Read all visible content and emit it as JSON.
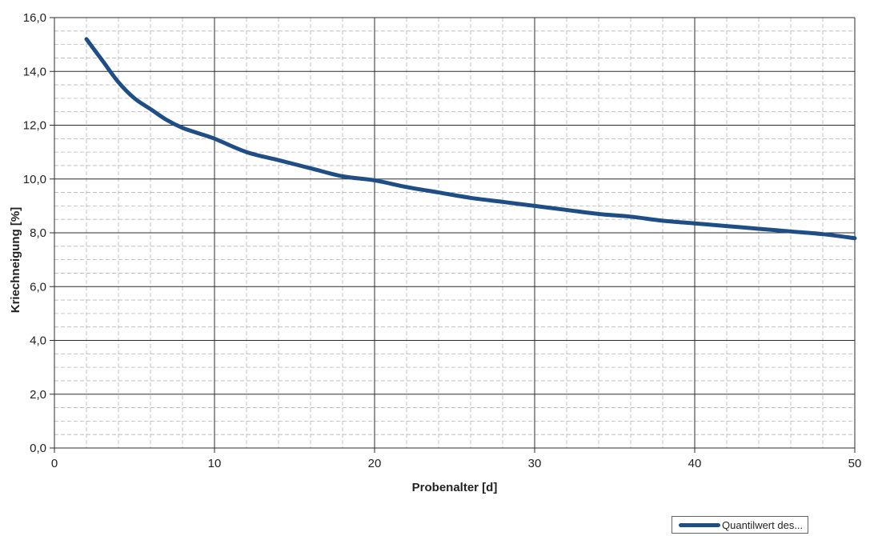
{
  "chart_data": {
    "type": "line",
    "xlabel": "Probenalter [d]",
    "ylabel": "Kriechneigung [%]",
    "xlim": [
      0,
      50
    ],
    "ylim": [
      0,
      16
    ],
    "x_ticks": [
      "0",
      "10",
      "20",
      "30",
      "40",
      "50"
    ],
    "y_ticks": [
      "0,0",
      "2,0",
      "4,0",
      "6,0",
      "8,0",
      "10,0",
      "12,0",
      "14,0",
      "16,0"
    ],
    "grid": true,
    "minor_grid": true,
    "legend_position": "bottom-right",
    "series": [
      {
        "name": "Quantilwert des...",
        "color": "#1f4e86",
        "x": [
          2,
          3,
          4,
          5,
          6,
          7,
          8,
          9,
          10,
          12,
          14,
          16,
          18,
          20,
          22,
          24,
          26,
          28,
          30,
          32,
          34,
          36,
          38,
          40,
          42,
          44,
          46,
          48,
          50
        ],
        "y": [
          15.2,
          14.4,
          13.6,
          13.0,
          12.6,
          12.2,
          11.9,
          11.7,
          11.5,
          11.0,
          10.7,
          10.4,
          10.1,
          9.95,
          9.7,
          9.5,
          9.3,
          9.15,
          9.0,
          8.85,
          8.7,
          8.6,
          8.45,
          8.35,
          8.25,
          8.15,
          8.05,
          7.95,
          7.8
        ]
      }
    ]
  }
}
